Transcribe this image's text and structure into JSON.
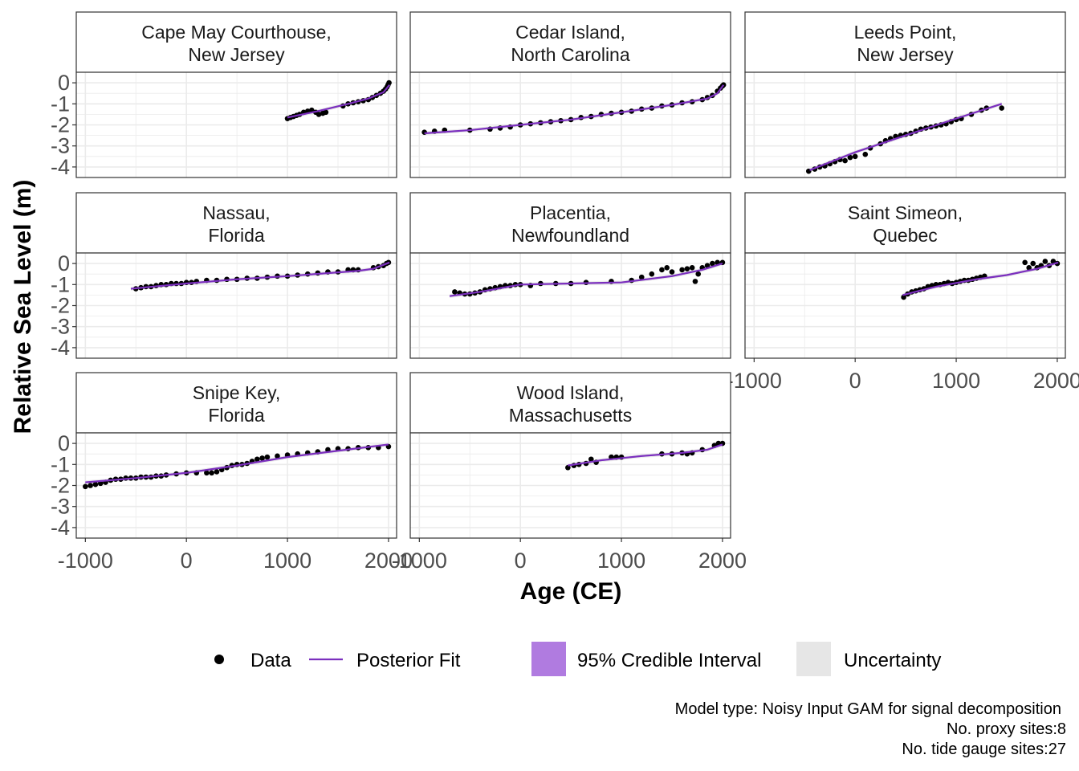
{
  "chart_data": {
    "type": "scatter",
    "xlabel": "Age (CE)",
    "ylabel": "Relative Sea Level (m)",
    "xlim": [
      -1090,
      2080
    ],
    "ylim": [
      -4.5,
      0.5
    ],
    "xticks": [
      -1000,
      0,
      1000,
      2000
    ],
    "xtick_labels": [
      "-1000",
      "0",
      "1000",
      "2000"
    ],
    "yticks": [
      0,
      -1,
      -2,
      -3,
      -4
    ],
    "ytick_labels": [
      "0",
      "-1",
      "-2",
      "-3",
      "-4"
    ],
    "grid": true,
    "colors": {
      "data": "#000000",
      "fit": "#7b2fbe",
      "credible_interval": "#b07be0",
      "uncertainty": "#e6e6e6"
    },
    "legend": {
      "placement": "bottom",
      "items": [
        {
          "label": "Data",
          "kind": "point"
        },
        {
          "label": "Posterior Fit",
          "kind": "line"
        },
        {
          "label": "95% Credible Interval",
          "kind": "fill-purple"
        },
        {
          "label": "Uncertainty",
          "kind": "fill-grey"
        }
      ]
    },
    "caption": [
      "Model type: Noisy Input GAM for signal decomposition",
      "No. proxy sites:8",
      "No. tide gauge sites:27"
    ],
    "panels": [
      {
        "title_line1": "Cape May Courthouse,",
        "title_line2": "New Jersey",
        "fit_x": [
          1000,
          1300,
          1600,
          1800,
          1950,
          2010
        ],
        "fit_y": [
          -1.65,
          -1.35,
          -1.0,
          -0.75,
          -0.45,
          -0.1
        ],
        "points_x": [
          1000,
          1030,
          1060,
          1090,
          1120,
          1160,
          1200,
          1240,
          1280,
          1310,
          1350,
          1380,
          1550,
          1600,
          1650,
          1700,
          1750,
          1800,
          1840,
          1880,
          1920,
          1950,
          1970,
          1985,
          1995,
          2005
        ],
        "points_y": [
          -1.7,
          -1.65,
          -1.6,
          -1.55,
          -1.5,
          -1.4,
          -1.35,
          -1.3,
          -1.4,
          -1.5,
          -1.45,
          -1.4,
          -1.1,
          -1.0,
          -0.95,
          -0.9,
          -0.85,
          -0.8,
          -0.7,
          -0.6,
          -0.5,
          -0.4,
          -0.3,
          -0.2,
          -0.1,
          0.0
        ]
      },
      {
        "title_line1": "Cedar Island,",
        "title_line2": "North Carolina",
        "fit_x": [
          -950,
          -500,
          0,
          500,
          1000,
          1500,
          1850,
          1950,
          2010
        ],
        "fit_y": [
          -2.4,
          -2.25,
          -2.0,
          -1.75,
          -1.4,
          -1.05,
          -0.75,
          -0.5,
          -0.1
        ],
        "points_x": [
          -950,
          -850,
          -750,
          -500,
          -300,
          -200,
          -100,
          0,
          100,
          200,
          300,
          400,
          500,
          600,
          700,
          800,
          900,
          1000,
          1100,
          1200,
          1300,
          1400,
          1500,
          1600,
          1700,
          1800,
          1850,
          1900,
          1950,
          1980,
          2000,
          2010
        ],
        "points_y": [
          -2.35,
          -2.3,
          -2.25,
          -2.25,
          -2.2,
          -2.15,
          -2.1,
          -2.0,
          -1.95,
          -1.9,
          -1.85,
          -1.8,
          -1.75,
          -1.65,
          -1.6,
          -1.5,
          -1.45,
          -1.4,
          -1.35,
          -1.25,
          -1.2,
          -1.1,
          -1.05,
          -0.95,
          -0.9,
          -0.8,
          -0.7,
          -0.6,
          -0.4,
          -0.25,
          -0.15,
          -0.1
        ]
      },
      {
        "title_line1": "Leeds Point,",
        "title_line2": "New Jersey",
        "fit_x": [
          -450,
          0,
          500,
          1000,
          1450
        ],
        "fit_y": [
          -4.15,
          -3.3,
          -2.5,
          -1.7,
          -1.0
        ],
        "points_x": [
          -460,
          -400,
          -350,
          -300,
          -250,
          -200,
          -150,
          -100,
          -50,
          0,
          100,
          150,
          250,
          300,
          350,
          400,
          450,
          500,
          550,
          600,
          650,
          700,
          750,
          800,
          850,
          900,
          950,
          1000,
          1050,
          1150,
          1250,
          1300,
          1450
        ],
        "points_y": [
          -4.2,
          -4.1,
          -4.0,
          -3.95,
          -3.85,
          -3.75,
          -3.65,
          -3.7,
          -3.55,
          -3.5,
          -3.4,
          -3.1,
          -2.9,
          -2.75,
          -2.65,
          -2.55,
          -2.5,
          -2.45,
          -2.4,
          -2.3,
          -2.2,
          -2.15,
          -2.1,
          -2.05,
          -2.0,
          -1.95,
          -1.85,
          -1.75,
          -1.7,
          -1.5,
          -1.3,
          -1.2,
          -1.2
        ]
      },
      {
        "title_line1": "Nassau,",
        "title_line2": "Florida",
        "fit_x": [
          -550,
          0,
          500,
          1000,
          1700,
          1850,
          2010
        ],
        "fit_y": [
          -1.2,
          -0.95,
          -0.75,
          -0.6,
          -0.35,
          -0.25,
          0.05
        ],
        "points_x": [
          -500,
          -450,
          -400,
          -350,
          -300,
          -250,
          -200,
          -150,
          -100,
          -50,
          0,
          50,
          100,
          200,
          300,
          400,
          500,
          600,
          700,
          800,
          900,
          1000,
          1100,
          1200,
          1300,
          1400,
          1500,
          1600,
          1650,
          1700,
          1850,
          1900,
          1950,
          1980,
          2000
        ],
        "points_y": [
          -1.2,
          -1.15,
          -1.1,
          -1.1,
          -1.05,
          -1.0,
          -1.0,
          -0.95,
          -0.95,
          -0.95,
          -0.9,
          -0.9,
          -0.85,
          -0.8,
          -0.8,
          -0.75,
          -0.75,
          -0.7,
          -0.7,
          -0.65,
          -0.6,
          -0.6,
          -0.55,
          -0.5,
          -0.45,
          -0.4,
          -0.4,
          -0.3,
          -0.3,
          -0.3,
          -0.2,
          -0.15,
          -0.1,
          0.0,
          0.05
        ]
      },
      {
        "title_line1": "Placentia,",
        "title_line2": "Newfoundland",
        "fit_x": [
          -700,
          -400,
          0,
          500,
          1000,
          1500,
          1800,
          2000
        ],
        "fit_y": [
          -1.55,
          -1.35,
          -1.0,
          -0.95,
          -0.9,
          -0.6,
          -0.3,
          0.0
        ],
        "points_x": [
          -650,
          -600,
          -550,
          -500,
          -450,
          -400,
          -350,
          -300,
          -250,
          -200,
          -150,
          -100,
          -50,
          0,
          100,
          200,
          350,
          500,
          650,
          900,
          1100,
          1200,
          1300,
          1400,
          1450,
          1500,
          1600,
          1650,
          1700,
          1730,
          1760,
          1800,
          1850,
          1900,
          1950,
          2000
        ],
        "points_y": [
          -1.35,
          -1.4,
          -1.45,
          -1.45,
          -1.4,
          -1.35,
          -1.25,
          -1.2,
          -1.15,
          -1.1,
          -1.05,
          -1.05,
          -1.0,
          -1.0,
          -1.05,
          -0.95,
          -0.95,
          -0.95,
          -0.9,
          -0.85,
          -0.8,
          -0.65,
          -0.5,
          -0.3,
          -0.2,
          -0.4,
          -0.3,
          -0.25,
          -0.2,
          -0.85,
          -0.5,
          -0.2,
          -0.1,
          0.0,
          0.05,
          0.05
        ]
      },
      {
        "title_line1": "Saint Simeon,",
        "title_line2": "Quebec",
        "fit_x": [
          470,
          800,
          1200,
          1500,
          1800,
          2010
        ],
        "fit_y": [
          -1.5,
          -1.1,
          -0.75,
          -0.55,
          -0.25,
          0.05
        ],
        "points_x": [
          480,
          520,
          560,
          600,
          640,
          680,
          720,
          760,
          800,
          840,
          880,
          920,
          960,
          1000,
          1040,
          1080,
          1120,
          1160,
          1200,
          1240,
          1280,
          1680,
          1720,
          1760,
          1800,
          1840,
          1880,
          1920,
          1960,
          2000
        ],
        "points_y": [
          -1.6,
          -1.45,
          -1.35,
          -1.3,
          -1.25,
          -1.2,
          -1.1,
          -1.05,
          -1.0,
          -1.0,
          -0.95,
          -0.9,
          -0.95,
          -0.9,
          -0.85,
          -0.8,
          -0.8,
          -0.75,
          -0.7,
          -0.65,
          -0.6,
          0.05,
          -0.2,
          0.0,
          -0.2,
          -0.1,
          0.1,
          -0.1,
          0.1,
          0.0
        ]
      },
      {
        "title_line1": "Snipe Key,",
        "title_line2": "Florida",
        "fit_x": [
          -1000,
          -500,
          0,
          500,
          1000,
          1500,
          2000
        ],
        "fit_y": [
          -1.85,
          -1.65,
          -1.4,
          -1.05,
          -0.65,
          -0.35,
          -0.05
        ],
        "points_x": [
          -1000,
          -950,
          -900,
          -850,
          -800,
          -750,
          -700,
          -650,
          -600,
          -550,
          -500,
          -450,
          -400,
          -350,
          -300,
          -250,
          -200,
          -100,
          0,
          100,
          200,
          250,
          300,
          350,
          400,
          450,
          500,
          550,
          600,
          650,
          700,
          750,
          800,
          900,
          1000,
          1100,
          1200,
          1300,
          1400,
          1500,
          1600,
          1700,
          1800,
          1900,
          2000
        ],
        "points_y": [
          -2.05,
          -2.0,
          -1.95,
          -1.9,
          -1.85,
          -1.75,
          -1.7,
          -1.7,
          -1.65,
          -1.65,
          -1.65,
          -1.6,
          -1.6,
          -1.6,
          -1.55,
          -1.55,
          -1.5,
          -1.45,
          -1.4,
          -1.4,
          -1.4,
          -1.4,
          -1.35,
          -1.25,
          -1.15,
          -1.05,
          -1.0,
          -1.0,
          -0.95,
          -0.85,
          -0.75,
          -0.7,
          -0.65,
          -0.6,
          -0.55,
          -0.5,
          -0.45,
          -0.4,
          -0.3,
          -0.25,
          -0.25,
          -0.2,
          -0.2,
          -0.2,
          -0.15
        ]
      },
      {
        "title_line1": "Wood Island,",
        "title_line2": "Massachusetts",
        "fit_x": [
          470,
          800,
          1200,
          1600,
          1850,
          2000
        ],
        "fit_y": [
          -1.05,
          -0.8,
          -0.6,
          -0.45,
          -0.3,
          -0.05
        ],
        "points_x": [
          470,
          530,
          580,
          650,
          700,
          750,
          900,
          950,
          1000,
          1400,
          1500,
          1600,
          1650,
          1700,
          1800,
          1920,
          1960,
          2000
        ],
        "points_y": [
          -1.15,
          -1.05,
          -1.0,
          -0.95,
          -0.75,
          -0.9,
          -0.65,
          -0.65,
          -0.65,
          -0.5,
          -0.5,
          -0.45,
          -0.5,
          -0.45,
          -0.3,
          -0.1,
          0.0,
          0.0
        ]
      }
    ]
  }
}
